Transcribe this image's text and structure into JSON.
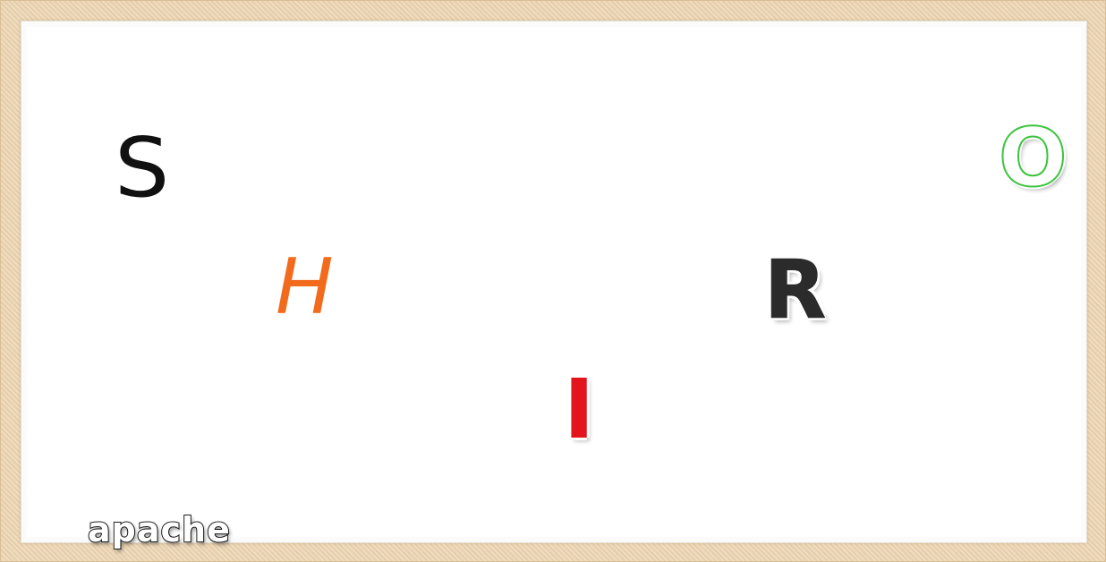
{
  "letters": {
    "s": {
      "text": "S",
      "color": "#111111"
    },
    "h": {
      "text": "H",
      "color": "#f26a1b"
    },
    "i": {
      "text": "I",
      "color": "#e3141b"
    },
    "r": {
      "text": "R",
      "color": "#2b2b2b"
    },
    "o": {
      "text": "O",
      "color": "#3dc43d"
    }
  },
  "brand": {
    "text": "apache"
  },
  "colors": {
    "frame": "#ecd6b5",
    "canvas": "#ffffff"
  }
}
